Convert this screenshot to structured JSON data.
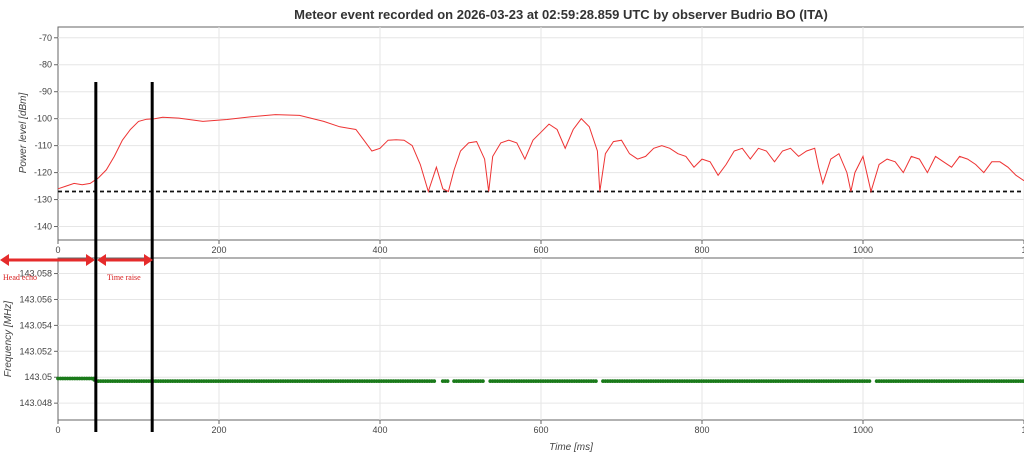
{
  "chart_data": [
    {
      "type": "line",
      "title": "Meteor event recorded on 2026-03-23 at 02:59:28.859 UTC by observer Budrio BO (ITA)",
      "xlabel": "",
      "ylabel": "Power level [dBm]",
      "xlim": [
        0,
        1200
      ],
      "ylim": [
        -145,
        -66
      ],
      "x_ticks": [
        "0",
        "200",
        "400",
        "600",
        "800",
        "1000",
        "1"
      ],
      "y_ticks": [
        "-70",
        "-80",
        "-90",
        "-100",
        "-110",
        "-120",
        "-130",
        "-140"
      ],
      "grid": true,
      "series": [
        {
          "color": "#ee3333",
          "x": [
            0,
            10,
            20,
            30,
            40,
            45,
            50,
            60,
            70,
            80,
            90,
            100,
            110,
            120,
            130,
            150,
            180,
            210,
            240,
            270,
            300,
            330,
            350,
            370,
            380,
            390,
            400,
            410,
            420,
            430,
            440,
            450,
            460,
            470,
            478,
            485,
            492,
            500,
            510,
            520,
            530,
            535,
            540,
            550,
            560,
            570,
            580,
            590,
            600,
            610,
            620,
            630,
            640,
            650,
            660,
            670,
            673,
            680,
            690,
            700,
            710,
            720,
            730,
            740,
            750,
            760,
            770,
            780,
            790,
            800,
            810,
            820,
            830,
            840,
            850,
            860,
            870,
            880,
            890,
            900,
            910,
            920,
            930,
            940,
            945,
            950,
            960,
            970,
            980,
            985,
            990,
            1000,
            1010,
            1020,
            1030,
            1040,
            1050,
            1060,
            1070,
            1080,
            1090,
            1100,
            1110,
            1120,
            1130,
            1140,
            1150,
            1160,
            1170,
            1180,
            1190,
            1200
          ],
          "y": [
            -126,
            -125,
            -124,
            -124.5,
            -124,
            -123,
            -122,
            -119,
            -114,
            -108,
            -104,
            -101,
            -100.2,
            -100,
            -99.5,
            -99.8,
            -101,
            -100.3,
            -99.3,
            -98.5,
            -98.8,
            -101,
            -103,
            -104,
            -108,
            -112,
            -111,
            -108,
            -107.8,
            -108,
            -110,
            -117,
            -127,
            -118,
            -126,
            -127,
            -119,
            -112,
            -109,
            -108.5,
            -115,
            -127,
            -114,
            -109,
            -108,
            -109,
            -115,
            -108,
            -105,
            -102,
            -104,
            -111,
            -104,
            -100,
            -103,
            -112,
            -127,
            -113,
            -108.5,
            -108,
            -113,
            -115,
            -114,
            -111,
            -110,
            -111,
            -113,
            -114,
            -118,
            -115,
            -116,
            -121,
            -117,
            -112,
            -111,
            -115,
            -111,
            -112,
            -116,
            -112,
            -111,
            -114,
            -112,
            -111,
            -118,
            -124,
            -115,
            -113,
            -120,
            -127,
            -120,
            -114,
            -127,
            -117,
            -115,
            -116,
            -120,
            -114,
            -115,
            -120,
            -114,
            -116,
            -118,
            -114,
            -115,
            -117,
            -120,
            -116,
            -116,
            -118,
            -121,
            -123
          ],
          "noise_floor": -127
        }
      ]
    },
    {
      "type": "scatter",
      "title": "",
      "xlabel": "Time [ms]",
      "ylabel": "Frequency [MHz]",
      "xlim": [
        0,
        1200
      ],
      "ylim": [
        143.0467,
        143.0592
      ],
      "x_ticks": [
        "0",
        "200",
        "400",
        "600",
        "800",
        "1000",
        "1"
      ],
      "y_ticks": [
        "143.058",
        "143.056",
        "143.054",
        "143.052",
        "143.05",
        "143.048"
      ],
      "grid": true,
      "series": [
        {
          "color": "#1a7a1a",
          "segments": [
            {
              "x": [
                0,
                45
              ],
              "y": 143.0499
            },
            {
              "x": 45,
              "y": 143.0498
            },
            {
              "x": [
                50,
                470
              ],
              "y": 143.0497
            },
            {
              "x": [
                478,
                485
              ],
              "y": 143.0497
            },
            {
              "x": [
                492,
                530
              ],
              "y": 143.0497
            },
            {
              "x": [
                537,
                670
              ],
              "y": 143.0497
            },
            {
              "x": [
                677,
                1010
              ],
              "y": 143.0497
            },
            {
              "x": [
                1017,
                1200
              ],
              "y": 143.0497
            }
          ]
        }
      ]
    }
  ],
  "annotations": {
    "head_echo": "Head echo",
    "time_raise": "Time raise",
    "marker_lines_ms": [
      47,
      117
    ]
  }
}
